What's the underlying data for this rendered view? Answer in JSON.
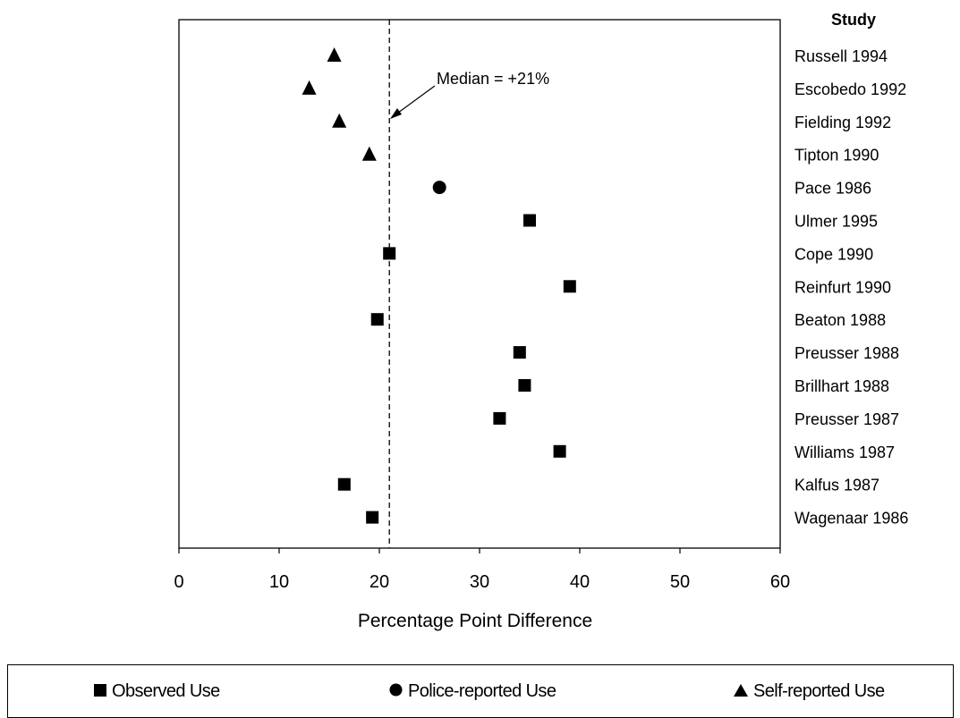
{
  "chart_data": {
    "type": "scatter",
    "title": "",
    "xlabel": "Percentage Point Difference",
    "ylabel": "",
    "xlim": [
      0,
      60
    ],
    "xticks": [
      0,
      10,
      20,
      30,
      40,
      50,
      60
    ],
    "study_header": "Study",
    "median": {
      "value": 21,
      "label": "Median = +21%"
    },
    "legend_position": "bottom",
    "series": [
      {
        "name": "Observed Use",
        "marker": "square",
        "color": "#000000"
      },
      {
        "name": "Police-reported Use",
        "marker": "circle",
        "color": "#000000"
      },
      {
        "name": "Self-reported Use",
        "marker": "triangle",
        "color": "#000000"
      }
    ],
    "studies": [
      {
        "study": "Russell 1994",
        "x": 15.5,
        "series": "Self-reported Use"
      },
      {
        "study": "Escobedo 1992",
        "x": 13,
        "series": "Self-reported Use"
      },
      {
        "study": "Fielding 1992",
        "x": 16,
        "series": "Self-reported Use"
      },
      {
        "study": "Tipton 1990",
        "x": 19,
        "series": "Self-reported Use"
      },
      {
        "study": "Pace 1986",
        "x": 26,
        "series": "Police-reported Use"
      },
      {
        "study": "Ulmer 1995",
        "x": 35,
        "series": "Observed Use"
      },
      {
        "study": "Cope 1990",
        "x": 21,
        "series": "Observed Use"
      },
      {
        "study": "Reinfurt 1990",
        "x": 39,
        "series": "Observed Use"
      },
      {
        "study": "Beaton 1988",
        "x": 19.8,
        "series": "Observed Use"
      },
      {
        "study": "Preusser 1988",
        "x": 34,
        "series": "Observed Use"
      },
      {
        "study": "Brillhart 1988",
        "x": 34.5,
        "series": "Observed Use"
      },
      {
        "study": "Preusser 1987",
        "x": 32,
        "series": "Observed Use"
      },
      {
        "study": "Williams 1987",
        "x": 38,
        "series": "Observed Use"
      },
      {
        "study": "Kalfus 1987",
        "x": 16.5,
        "series": "Observed Use"
      },
      {
        "study": "Wagenaar 1986",
        "x": 19.3,
        "series": "Observed Use"
      }
    ]
  }
}
